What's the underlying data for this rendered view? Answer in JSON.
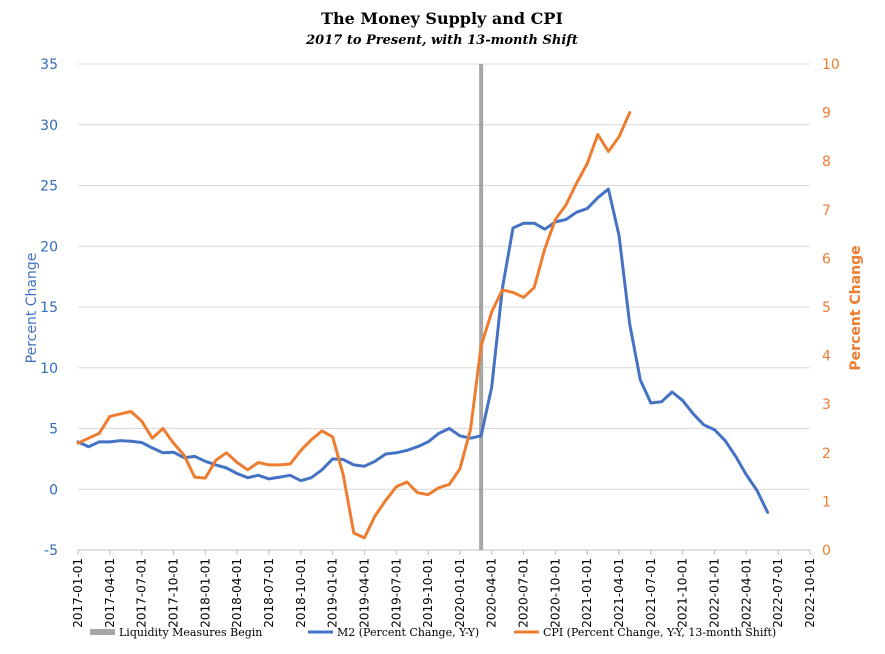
{
  "chart_data": {
    "type": "line",
    "title": "The Money Supply and CPI",
    "subtitle": "2017 to Present, with 13-month Shift",
    "ylabel_left": "Percent Change",
    "ylabel_right": "Percent Change",
    "ylim_left": [
      -5,
      35
    ],
    "ylim_right": [
      0,
      10
    ],
    "yticks_left": [
      -5,
      0,
      5,
      10,
      15,
      20,
      25,
      30,
      35
    ],
    "yticks_right": [
      0,
      1,
      2,
      3,
      4,
      5,
      6,
      7,
      8,
      9,
      10
    ],
    "x_tick_labels": [
      "2017-01-01",
      "2017-04-01",
      "2017-07-01",
      "2017-10-01",
      "2018-01-01",
      "2018-04-01",
      "2018-07-01",
      "2018-10-01",
      "2019-01-01",
      "2019-04-01",
      "2019-07-01",
      "2019-10-01",
      "2020-01-01",
      "2020-04-01",
      "2020-07-01",
      "2020-10-01",
      "2021-01-01",
      "2021-04-01",
      "2021-07-01",
      "2021-10-01",
      "2022-01-01",
      "2022-04-01",
      "2022-07-01",
      "2022-10-01"
    ],
    "grid": true,
    "legend_position": "bottom",
    "vertical_marker": {
      "name": "Liquidity Measures Begin",
      "x": "2020-03-01",
      "color": "#a6a6a6"
    },
    "series": [
      {
        "name": "M2 (Percent Change, Y-Y)",
        "axis": "left",
        "color": "#4472c4",
        "start": "2017-01-01",
        "values": [
          3.9,
          3.5,
          3.9,
          3.9,
          4.0,
          3.95,
          3.85,
          3.4,
          3.0,
          3.05,
          2.6,
          2.7,
          2.3,
          2.0,
          1.75,
          1.3,
          0.95,
          1.15,
          0.85,
          1.0,
          1.15,
          0.7,
          0.95,
          1.6,
          2.5,
          2.45,
          2.0,
          1.9,
          2.3,
          2.9,
          3.0,
          3.2,
          3.5,
          3.9,
          4.6,
          5.0,
          4.4,
          4.2,
          4.4,
          8.4,
          16.5,
          21.5,
          21.9,
          21.9,
          21.4,
          22.0,
          22.2,
          22.8,
          23.1,
          24.0,
          24.7,
          20.9,
          13.6,
          9.0,
          7.1,
          7.2,
          8.0,
          7.3,
          6.2,
          5.3,
          4.9,
          4.0,
          2.7,
          1.2,
          -0.1,
          -1.9
        ]
      },
      {
        "name": "CPI (Percent Change, Y-Y, 13-month Shift)",
        "axis": "right",
        "color": "#ed7d31",
        "start": "2017-01-01",
        "values": [
          2.2,
          2.3,
          2.4,
          2.75,
          2.8,
          2.85,
          2.65,
          2.3,
          2.5,
          2.2,
          1.95,
          1.5,
          1.48,
          1.85,
          2.0,
          1.8,
          1.65,
          1.8,
          1.75,
          1.75,
          1.77,
          2.05,
          2.27,
          2.45,
          2.33,
          1.55,
          0.35,
          0.25,
          0.7,
          1.02,
          1.3,
          1.4,
          1.18,
          1.14,
          1.28,
          1.35,
          1.67,
          2.48,
          4.2,
          4.9,
          5.35,
          5.3,
          5.2,
          5.4,
          6.2,
          6.8,
          7.1,
          7.55,
          7.95,
          8.55,
          8.2,
          8.5,
          9.0
        ]
      }
    ]
  },
  "legend": [
    {
      "label": "Liquidity Measures Begin",
      "color": "#a6a6a6"
    },
    {
      "label": "M2 (Percent Change, Y-Y)",
      "color": "#4472c4"
    },
    {
      "label": "CPI (Percent Change, Y-Y, 13-month Shift)",
      "color": "#ed7d31"
    }
  ]
}
